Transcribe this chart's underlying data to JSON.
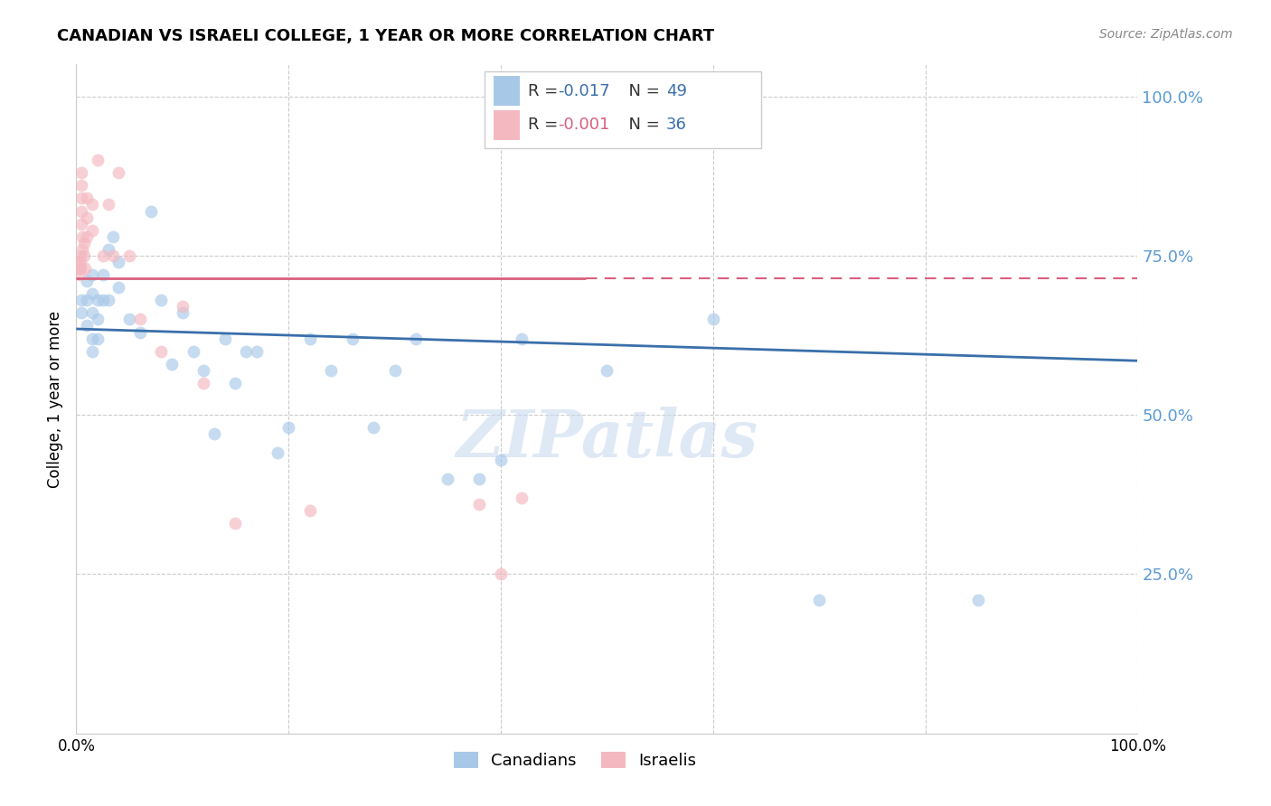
{
  "title": "CANADIAN VS ISRAELI COLLEGE, 1 YEAR OR MORE CORRELATION CHART",
  "source": "Source: ZipAtlas.com",
  "ylabel": "College, 1 year or more",
  "ytick_labels": [
    "",
    "25.0%",
    "50.0%",
    "75.0%",
    "100.0%"
  ],
  "ytick_values": [
    0.0,
    0.25,
    0.5,
    0.75,
    1.0
  ],
  "xlim": [
    0.0,
    1.0
  ],
  "ylim": [
    0.0,
    1.05
  ],
  "legend_blue_r": "-0.017",
  "legend_blue_n": "49",
  "legend_pink_r": "-0.001",
  "legend_pink_n": "36",
  "blue_color": "#a8c8e8",
  "pink_color": "#f4b8c0",
  "trend_blue_color": "#3a6faa",
  "trend_pink_color": "#d95f7f",
  "canadians_x": [
    0.005,
    0.005,
    0.01,
    0.01,
    0.01,
    0.015,
    0.015,
    0.015,
    0.015,
    0.015,
    0.02,
    0.02,
    0.02,
    0.025,
    0.025,
    0.03,
    0.03,
    0.035,
    0.04,
    0.04,
    0.05,
    0.06,
    0.07,
    0.08,
    0.09,
    0.1,
    0.11,
    0.12,
    0.13,
    0.14,
    0.15,
    0.16,
    0.17,
    0.19,
    0.2,
    0.22,
    0.24,
    0.26,
    0.28,
    0.3,
    0.32,
    0.35,
    0.38,
    0.4,
    0.42,
    0.5,
    0.6,
    0.7,
    0.85
  ],
  "canadians_y": [
    0.68,
    0.66,
    0.71,
    0.68,
    0.64,
    0.72,
    0.69,
    0.66,
    0.62,
    0.6,
    0.68,
    0.65,
    0.62,
    0.72,
    0.68,
    0.76,
    0.68,
    0.78,
    0.74,
    0.7,
    0.65,
    0.63,
    0.82,
    0.68,
    0.58,
    0.66,
    0.6,
    0.57,
    0.47,
    0.62,
    0.55,
    0.6,
    0.6,
    0.44,
    0.48,
    0.62,
    0.57,
    0.62,
    0.48,
    0.57,
    0.62,
    0.4,
    0.4,
    0.43,
    0.62,
    0.57,
    0.65,
    0.21,
    0.21
  ],
  "israelis_x": [
    0.002,
    0.003,
    0.003,
    0.004,
    0.004,
    0.004,
    0.005,
    0.005,
    0.005,
    0.005,
    0.005,
    0.006,
    0.006,
    0.007,
    0.007,
    0.008,
    0.01,
    0.01,
    0.01,
    0.015,
    0.015,
    0.02,
    0.025,
    0.03,
    0.035,
    0.04,
    0.05,
    0.06,
    0.08,
    0.1,
    0.12,
    0.15,
    0.22,
    0.38,
    0.4,
    0.42
  ],
  "israelis_y": [
    0.74,
    0.73,
    0.72,
    0.75,
    0.74,
    0.73,
    0.88,
    0.86,
    0.84,
    0.82,
    0.8,
    0.78,
    0.76,
    0.77,
    0.75,
    0.73,
    0.84,
    0.81,
    0.78,
    0.83,
    0.79,
    0.9,
    0.75,
    0.83,
    0.75,
    0.88,
    0.75,
    0.65,
    0.6,
    0.67,
    0.55,
    0.33,
    0.35,
    0.36,
    0.25,
    0.37
  ],
  "blue_trend_x": [
    0.0,
    1.0
  ],
  "blue_trend_y": [
    0.635,
    0.585
  ],
  "pink_trend_x": [
    0.0,
    1.0
  ],
  "pink_trend_y": [
    0.715,
    0.715
  ],
  "pink_trend_solid_end": 0.48,
  "watermark": "ZIPatlas",
  "marker_size": 100,
  "alpha": 0.65,
  "legend_blue_text_color": "#3a6faa",
  "legend_pink_text_color": "#d95f7f",
  "legend_n_color": "#3a6faa"
}
